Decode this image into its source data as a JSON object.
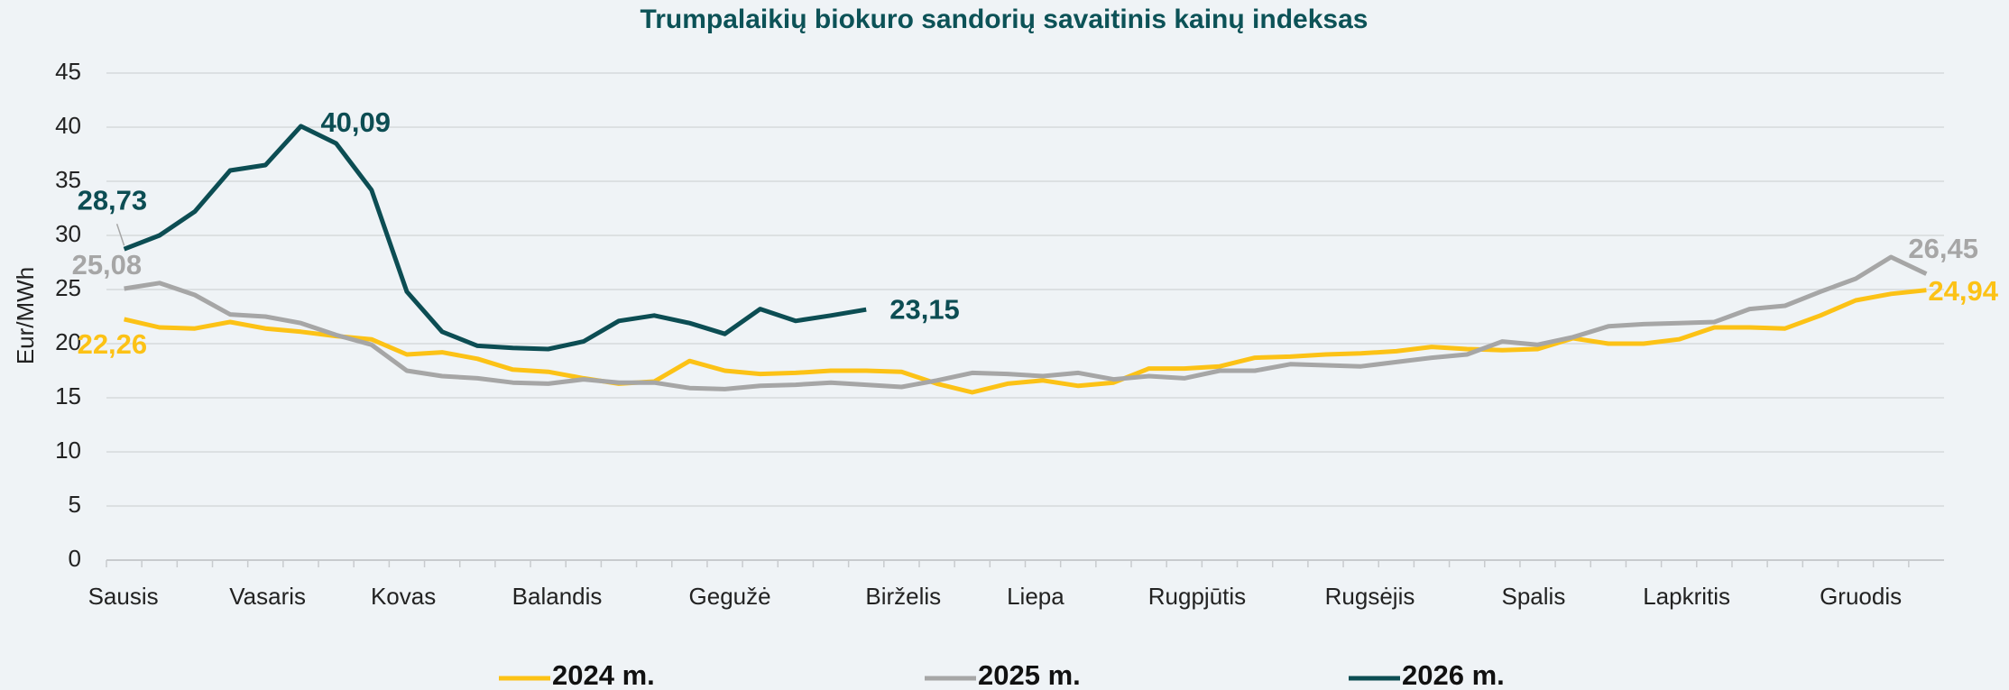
{
  "chart_data": {
    "type": "line",
    "title": "Trumpalaikių biokuro sandorių savaitinis kainų indeksas",
    "y_label": "Eur/MWh",
    "x": [
      1,
      2,
      3,
      4,
      5,
      6,
      7,
      8,
      9,
      10,
      11,
      12,
      13,
      14,
      15,
      16,
      17,
      18,
      19,
      20,
      21,
      22,
      23,
      24,
      25,
      26,
      27,
      28,
      29,
      30,
      31,
      32,
      33,
      34,
      35,
      36,
      37,
      38,
      39,
      40,
      41,
      42,
      43,
      44,
      45,
      46,
      47,
      48,
      49,
      50,
      51,
      52
    ],
    "xlim": [
      0.5,
      52.5
    ],
    "xticks": [
      {
        "value": 1,
        "label": "Sausis"
      },
      {
        "value": 5,
        "label": "Vasaris"
      },
      {
        "value": 9,
        "label": "Kovas"
      },
      {
        "value": 13,
        "label": "Balandis"
      },
      {
        "value": 18,
        "label": "Gegužė"
      },
      {
        "value": 23,
        "label": "Birželis"
      },
      {
        "value": 27,
        "label": "Liepa"
      },
      {
        "value": 31,
        "label": "Rugpjūtis"
      },
      {
        "value": 36,
        "label": "Rugsėjis"
      },
      {
        "value": 41,
        "label": "Spalis"
      },
      {
        "value": 45,
        "label": "Lapkritis"
      },
      {
        "value": 50,
        "label": "Gruodis"
      }
    ],
    "ylim": [
      0,
      45
    ],
    "yticks": [
      0,
      5,
      10,
      15,
      20,
      25,
      30,
      35,
      40,
      45
    ],
    "grid": true,
    "legend": "bottom",
    "series": [
      {
        "name": "2024 m.",
        "color": "#fcc216",
        "values": [
          22.26,
          21.5,
          21.4,
          22.0,
          21.4,
          21.1,
          20.7,
          20.4,
          19.0,
          19.2,
          18.6,
          17.6,
          17.4,
          16.8,
          16.3,
          16.5,
          18.4,
          17.5,
          17.2,
          17.3,
          17.5,
          17.5,
          17.4,
          16.3,
          15.5,
          16.3,
          16.6,
          16.1,
          16.4,
          17.7,
          17.7,
          17.9,
          18.7,
          18.8,
          19.0,
          19.1,
          19.3,
          19.7,
          19.5,
          19.4,
          19.5,
          20.5,
          20.0,
          20.0,
          20.4,
          21.5,
          21.5,
          21.4,
          22.6,
          24.0,
          24.6,
          24.94
        ],
        "value_labels": {
          "0": "22,26",
          "51": "24,94"
        }
      },
      {
        "name": "2025 m.",
        "color": "#a6a6a6",
        "values": [
          25.08,
          25.6,
          24.5,
          22.7,
          22.5,
          21.9,
          20.8,
          19.9,
          17.5,
          17.0,
          16.8,
          16.4,
          16.3,
          16.7,
          16.4,
          16.4,
          15.9,
          15.8,
          16.1,
          16.2,
          16.4,
          16.2,
          16.0,
          16.6,
          17.3,
          17.2,
          17.0,
          17.3,
          16.7,
          17.0,
          16.8,
          17.5,
          17.5,
          18.1,
          18.0,
          17.9,
          18.3,
          18.7,
          19.0,
          20.2,
          19.9,
          20.6,
          21.6,
          21.8,
          21.9,
          22.0,
          23.2,
          23.5,
          24.8,
          26.0,
          28.0,
          26.45
        ],
        "value_labels": {
          "0": "25,08",
          "51": "26,45"
        }
      },
      {
        "name": "2026 m.",
        "color": "#0c4d53",
        "values": [
          28.73,
          30.0,
          32.2,
          36.0,
          36.5,
          40.09,
          38.5,
          34.2,
          24.8,
          21.1,
          19.8,
          19.6,
          19.5,
          20.2,
          22.1,
          22.6,
          21.9,
          20.9,
          23.2,
          22.1,
          22.6,
          23.15,
          null,
          null,
          null,
          null,
          null,
          null,
          null,
          null,
          null,
          null,
          null,
          null,
          null,
          null,
          null,
          null,
          null,
          null,
          null,
          null,
          null,
          null,
          null,
          null,
          null,
          null,
          null,
          null,
          null,
          null
        ],
        "value_labels": {
          "0": "28,73",
          "5": "40,09",
          "21": "23,15"
        }
      }
    ]
  }
}
